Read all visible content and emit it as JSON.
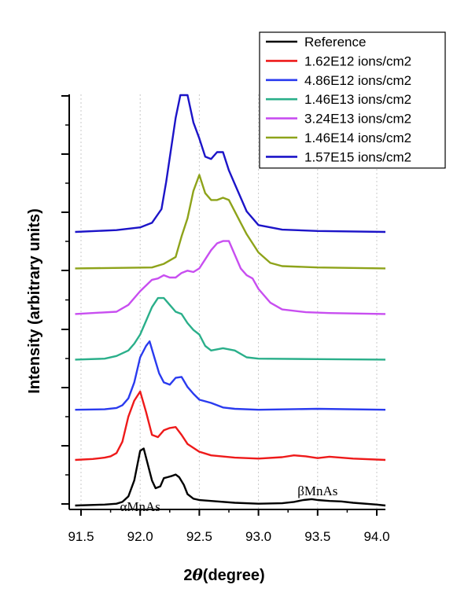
{
  "chart_data": {
    "type": "line",
    "xlabel_prefix": "2",
    "xlabel_symbol": "θ",
    "xlabel_suffix": "(degree)",
    "ylabel": "Intensity (arbitrary units)",
    "xlim": [
      91.45,
      94.1
    ],
    "xticks": [
      "91.5",
      "92.0",
      "92.5",
      "93.0",
      "93.5",
      "94.0"
    ],
    "grid": true,
    "legend_position": "top-right",
    "annotations": [
      {
        "text": "αMnAs",
        "x": 92.0,
        "y": -0.12
      },
      {
        "text": "βMnAs",
        "x": 93.5,
        "y": 0.22
      }
    ],
    "series": [
      {
        "name": "Reference",
        "color": "#000000",
        "offset": 0.0,
        "x": [
          91.45,
          91.7,
          91.8,
          91.85,
          91.9,
          91.95,
          92.0,
          92.03,
          92.07,
          92.1,
          92.13,
          92.17,
          92.2,
          92.23,
          92.27,
          92.3,
          92.33,
          92.37,
          92.4,
          92.45,
          92.5,
          92.6,
          92.8,
          93.0,
          93.2,
          93.3,
          93.38,
          93.45,
          93.5,
          93.6,
          93.7,
          93.8,
          94.0,
          94.1
        ],
        "y": [
          0.0,
          0.02,
          0.04,
          0.08,
          0.2,
          0.55,
          1.2,
          1.25,
          0.85,
          0.55,
          0.38,
          0.42,
          0.6,
          0.62,
          0.65,
          0.68,
          0.62,
          0.45,
          0.25,
          0.15,
          0.12,
          0.1,
          0.06,
          0.04,
          0.05,
          0.08,
          0.12,
          0.14,
          0.12,
          0.1,
          0.09,
          0.06,
          0.02,
          0.0
        ]
      },
      {
        "name": "1.62E12 ions/cm2",
        "color": "#ee1a1a",
        "offset": 1.0,
        "x": [
          91.45,
          91.6,
          91.7,
          91.75,
          91.8,
          91.85,
          91.9,
          91.95,
          92.0,
          92.05,
          92.1,
          92.15,
          92.2,
          92.25,
          92.3,
          92.35,
          92.4,
          92.5,
          92.6,
          92.8,
          93.0,
          93.2,
          93.3,
          93.4,
          93.5,
          93.6,
          93.8,
          94.1
        ],
        "y": [
          0.0,
          0.02,
          0.05,
          0.08,
          0.15,
          0.4,
          0.95,
          1.3,
          1.5,
          1.05,
          0.55,
          0.5,
          0.65,
          0.7,
          0.72,
          0.55,
          0.35,
          0.18,
          0.1,
          0.05,
          0.03,
          0.06,
          0.1,
          0.08,
          0.04,
          0.07,
          0.03,
          0.0
        ]
      },
      {
        "name": "4.86E12 ions/cm2",
        "color": "#2a3bef",
        "offset": 2.1,
        "x": [
          91.45,
          91.7,
          91.8,
          91.85,
          91.9,
          91.95,
          92.0,
          92.05,
          92.08,
          92.12,
          92.16,
          92.2,
          92.25,
          92.3,
          92.35,
          92.4,
          92.45,
          92.5,
          92.6,
          92.7,
          92.8,
          93.0,
          93.5,
          94.1
        ],
        "y": [
          0.0,
          0.01,
          0.04,
          0.1,
          0.25,
          0.6,
          1.15,
          1.4,
          1.5,
          1.15,
          0.8,
          0.6,
          0.55,
          0.7,
          0.72,
          0.5,
          0.35,
          0.22,
          0.15,
          0.05,
          0.02,
          0.0,
          0.02,
          0.0
        ]
      },
      {
        "name": "1.46E13 ions/cm2",
        "color": "#2aaf8a",
        "offset": 3.2,
        "x": [
          91.45,
          91.7,
          91.8,
          91.9,
          91.95,
          92.0,
          92.05,
          92.1,
          92.15,
          92.2,
          92.25,
          92.3,
          92.35,
          92.4,
          92.45,
          92.5,
          92.55,
          92.6,
          92.7,
          92.8,
          92.9,
          93.0,
          93.5,
          94.1
        ],
        "y": [
          0.0,
          0.02,
          0.08,
          0.2,
          0.35,
          0.55,
          0.85,
          1.15,
          1.35,
          1.35,
          1.2,
          1.05,
          1.0,
          0.8,
          0.65,
          0.55,
          0.3,
          0.2,
          0.25,
          0.2,
          0.05,
          0.02,
          0.01,
          0.0
        ]
      },
      {
        "name": "3.24E13 ions/cm2",
        "color": "#c84ef0",
        "offset": 4.2,
        "x": [
          91.45,
          91.8,
          91.9,
          92.0,
          92.1,
          92.15,
          92.2,
          92.25,
          92.3,
          92.35,
          92.4,
          92.45,
          92.5,
          92.55,
          92.6,
          92.65,
          92.7,
          92.75,
          92.8,
          92.85,
          92.9,
          92.95,
          93.0,
          93.1,
          93.2,
          93.4,
          93.6,
          94.1
        ],
        "y": [
          0.0,
          0.05,
          0.2,
          0.5,
          0.75,
          0.78,
          0.85,
          0.8,
          0.8,
          0.9,
          0.95,
          0.92,
          1.0,
          1.2,
          1.4,
          1.55,
          1.6,
          1.6,
          1.3,
          1.0,
          0.85,
          0.78,
          0.55,
          0.25,
          0.1,
          0.04,
          0.02,
          0.0
        ]
      },
      {
        "name": "1.46E14 ions/cm2",
        "color": "#8ea31a",
        "offset": 5.2,
        "x": [
          91.45,
          92.1,
          92.2,
          92.3,
          92.35,
          92.4,
          92.45,
          92.5,
          92.55,
          92.6,
          92.65,
          92.7,
          92.75,
          92.8,
          92.85,
          92.9,
          93.0,
          93.1,
          93.2,
          93.5,
          94.1
        ],
        "y": [
          0.0,
          0.02,
          0.1,
          0.25,
          0.7,
          1.1,
          1.7,
          2.05,
          1.65,
          1.5,
          1.5,
          1.55,
          1.5,
          1.25,
          1.0,
          0.75,
          0.35,
          0.12,
          0.05,
          0.02,
          0.0
        ]
      },
      {
        "name": "1.57E15 ions/cm2",
        "color": "#1c14c8",
        "offset": 6.0,
        "x": [
          91.45,
          91.8,
          92.0,
          92.1,
          92.18,
          92.22,
          92.26,
          92.3,
          92.34,
          92.4,
          92.45,
          92.5,
          92.55,
          92.6,
          92.65,
          92.7,
          92.75,
          92.8,
          92.9,
          93.0,
          93.2,
          93.5,
          94.1
        ],
        "y": [
          0.0,
          0.04,
          0.1,
          0.2,
          0.5,
          1.1,
          1.8,
          2.5,
          3.0,
          3.0,
          2.4,
          2.05,
          1.65,
          1.6,
          1.75,
          1.75,
          1.35,
          1.05,
          0.45,
          0.15,
          0.05,
          0.02,
          0.0
        ]
      }
    ]
  }
}
